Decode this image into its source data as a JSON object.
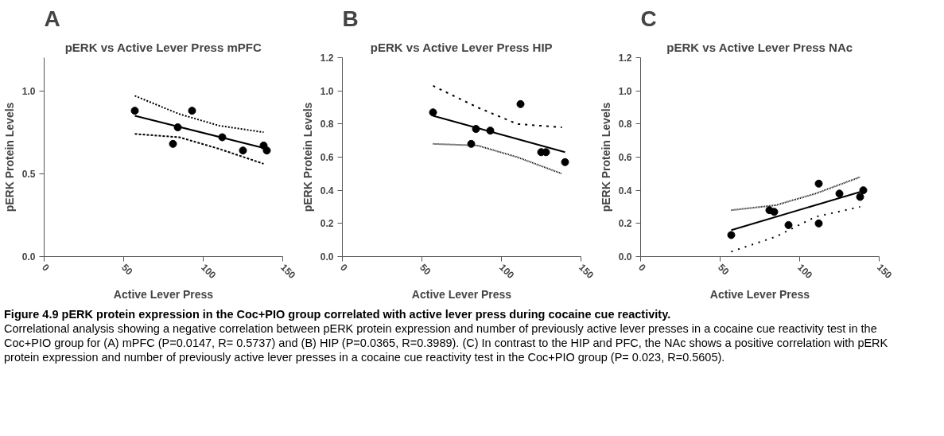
{
  "chart_data": [
    {
      "type": "scatter",
      "title": "pERK vs Active Lever Press mPFC",
      "xlabel": "Active Lever Press",
      "ylabel": "pERK Protein Levels",
      "annotations": [
        "A",
        "Figure 4.9 pERK protein expression in the Coc+PIO group correlated with active lever press during cocaine cue reactivity.",
        "Correlational analysis showing a negative correlation between pERK protein expression and number of previously active lever presses in a cocaine cue reactivity test  in the Coc+PIO group for (A) mPFC  (P=0.0147, R= 0.5737) and (B) HIP (P=0.0365, R=0.3989). (C) In contrast to the HIP and PFC, the NAc shows a positive correlation with pERK protein expression and number of previously active lever presses in a cocaine cue reactivity test in the Coc+PIO group (P= 0.023, R=0.5605)."
      ],
      "xlim": [
        0,
        150
      ],
      "xticks": [
        0,
        50,
        100,
        150
      ],
      "ylim": [
        0,
        1.2
      ],
      "yticks": [
        {
          "value": 0,
          "label": "0.0"
        },
        {
          "value": 0.5,
          "label": "0.5"
        },
        {
          "value": 1,
          "label": "1.0"
        }
      ],
      "grid": false,
      "series": [
        {
          "marker": "circle",
          "color": "#000000",
          "x": [
            57,
            81,
            84,
            93,
            112,
            125,
            138,
            140
          ],
          "values": [
            0.88,
            0.68,
            0.78,
            0.88,
            0.72,
            0.64,
            0.67,
            0.64
          ]
        },
        {
          "type": "line",
          "color": "#000000",
          "line_style": "solid",
          "x": [
            57,
            140
          ],
          "values": [
            0.85,
            0.65
          ]
        },
        {
          "type": "line",
          "color": "#000000",
          "line_style": "dotted",
          "x": [
            57,
            85,
            110,
            138
          ],
          "values": [
            0.97,
            0.86,
            0.79,
            0.75
          ]
        },
        {
          "type": "line",
          "color": "#000000",
          "line_style": "dotted",
          "x": [
            57,
            85,
            110,
            138
          ],
          "values": [
            0.74,
            0.72,
            0.65,
            0.56
          ]
        }
      ]
    },
    {
      "type": "scatter",
      "title": "pERK vs Active Lever Press HIP",
      "xlabel": "Active Lever Press",
      "ylabel": "pERK Protein Levels",
      "annotations": [
        "B"
      ],
      "xlim": [
        0,
        150
      ],
      "xticks": [
        0,
        50,
        100,
        150
      ],
      "ylim": [
        0,
        1.2
      ],
      "yticks": [
        {
          "value": 0,
          "label": "0.0"
        },
        {
          "value": 0.2,
          "label": "0.2"
        },
        {
          "value": 0.4,
          "label": "0.4"
        },
        {
          "value": 0.6,
          "label": "0.6"
        },
        {
          "value": 0.8,
          "label": "0.8"
        },
        {
          "value": 1,
          "label": "1.0"
        },
        {
          "value": 1.2,
          "label": "1.2"
        }
      ],
      "grid": false,
      "series": [
        {
          "marker": "circle",
          "color": "#000000",
          "x": [
            57,
            81,
            84,
            93,
            112,
            125,
            128,
            140
          ],
          "values": [
            0.87,
            0.68,
            0.77,
            0.76,
            0.92,
            0.63,
            0.63,
            0.57
          ]
        },
        {
          "type": "line",
          "color": "#000000",
          "line_style": "solid",
          "x": [
            57,
            140
          ],
          "values": [
            0.85,
            0.63
          ]
        },
        {
          "type": "line",
          "color": "#000000",
          "line_style": "dotted",
          "x": [
            57,
            85,
            110,
            138
          ],
          "values": [
            1.03,
            0.9,
            0.8,
            0.78
          ]
        },
        {
          "type": "line",
          "color": "#000000",
          "line_style": "dotted",
          "x": [
            57,
            85,
            110,
            138
          ],
          "values": [
            0.68,
            0.67,
            0.6,
            0.5
          ]
        }
      ]
    },
    {
      "type": "scatter",
      "title": "pERK vs Active Lever Press NAc",
      "xlabel": "Active Lever Press",
      "ylabel": "pERK Protein Levels",
      "annotations": [
        "C"
      ],
      "xlim": [
        0,
        150
      ],
      "xticks": [
        0,
        50,
        100,
        150
      ],
      "ylim": [
        0,
        1.2
      ],
      "yticks": [
        {
          "value": 0,
          "label": "0.0"
        },
        {
          "value": 0.2,
          "label": "0.2"
        },
        {
          "value": 0.4,
          "label": "0.4"
        },
        {
          "value": 0.6,
          "label": "0.6"
        },
        {
          "value": 0.8,
          "label": "0.8"
        },
        {
          "value": 1,
          "label": "1.0"
        },
        {
          "value": 1.2,
          "label": "1.2"
        }
      ],
      "grid": false,
      "series": [
        {
          "marker": "circle",
          "color": "#000000",
          "x": [
            57,
            81,
            84,
            93,
            112,
            112,
            125,
            138,
            140
          ],
          "values": [
            0.13,
            0.28,
            0.27,
            0.19,
            0.44,
            0.2,
            0.38,
            0.36,
            0.4
          ]
        },
        {
          "type": "line",
          "color": "#000000",
          "line_style": "solid",
          "x": [
            57,
            138
          ],
          "values": [
            0.16,
            0.39
          ]
        },
        {
          "type": "line",
          "color": "#000000",
          "line_style": "dotted",
          "x": [
            57,
            85,
            110,
            138
          ],
          "values": [
            0.28,
            0.31,
            0.38,
            0.48
          ]
        },
        {
          "type": "line",
          "color": "#000000",
          "line_style": "dotted",
          "x": [
            57,
            85,
            110,
            138
          ],
          "values": [
            0.03,
            0.12,
            0.24,
            0.3
          ]
        }
      ]
    }
  ]
}
